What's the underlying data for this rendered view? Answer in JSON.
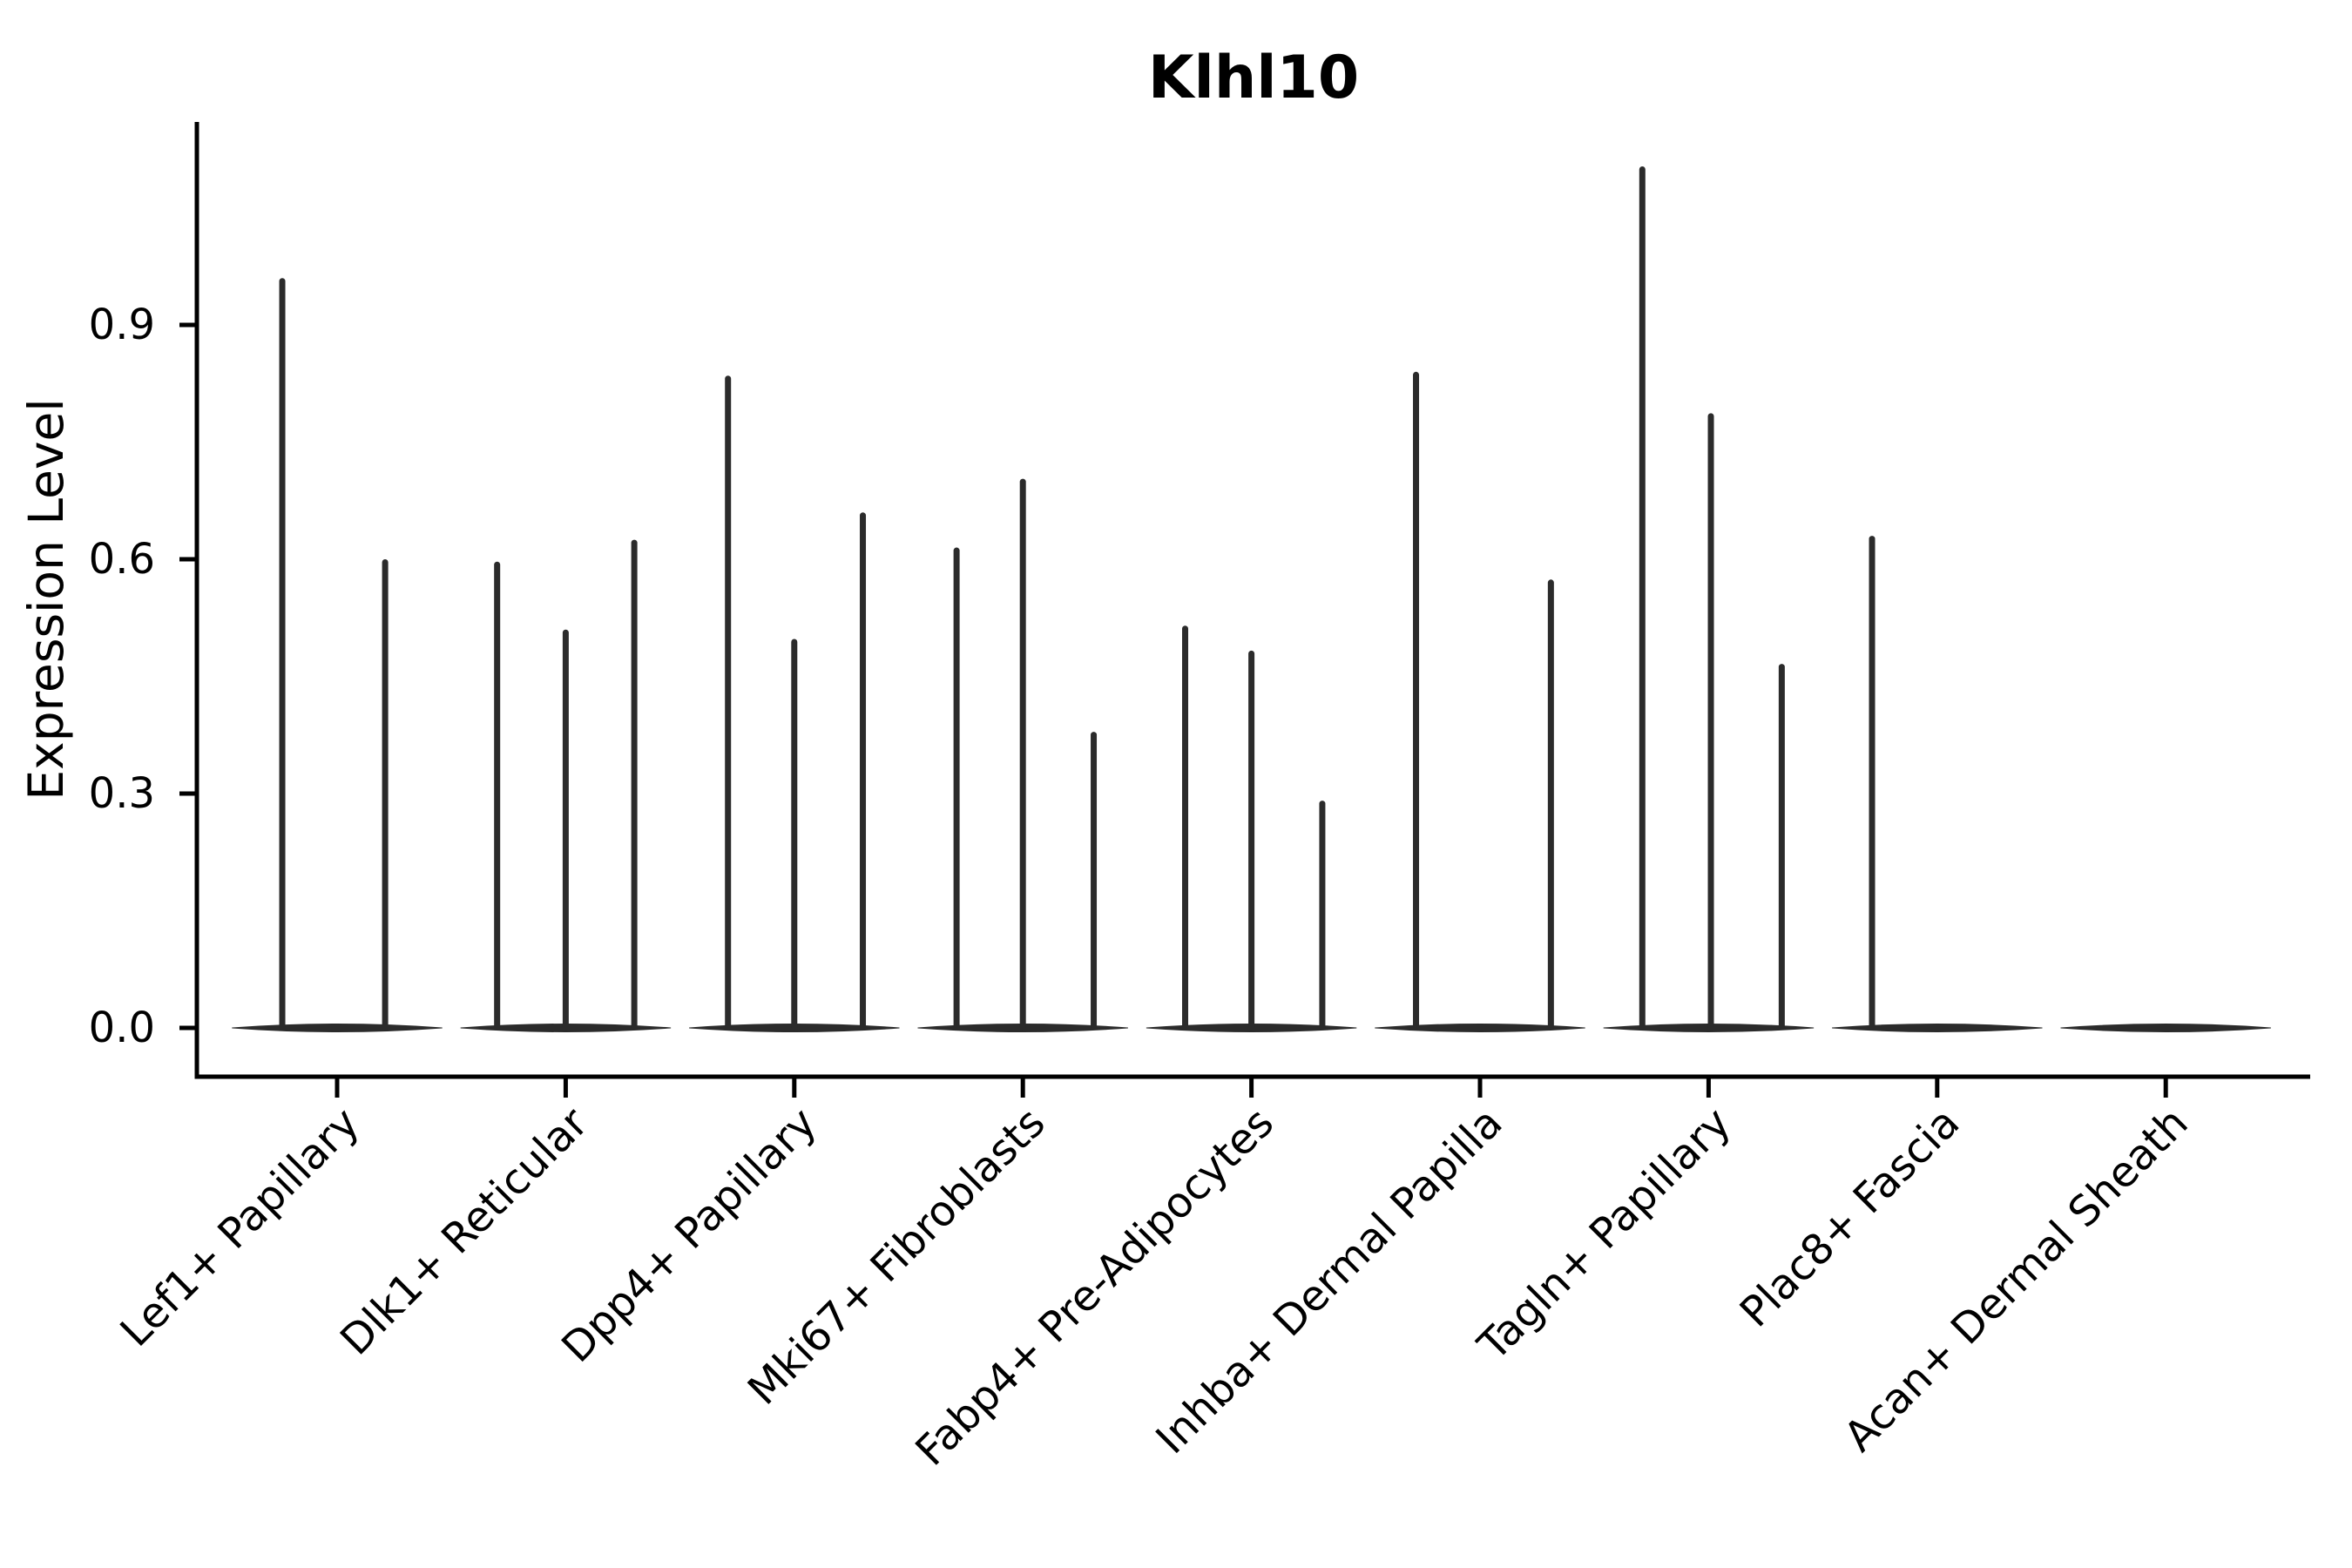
{
  "title": "Klhl10",
  "chart_data": {
    "type": "violin",
    "title": "Klhl10",
    "xlabel": "",
    "ylabel": "Expression Level",
    "ylim": [
      -0.06,
      1.16
    ],
    "grid": false,
    "legend": false,
    "y_ticks": [
      {
        "value": 0.0,
        "label": "0.0"
      },
      {
        "value": 0.3,
        "label": "0.3"
      },
      {
        "value": 0.6,
        "label": "0.6"
      },
      {
        "value": 0.9,
        "label": "0.9"
      }
    ],
    "categories": [
      {
        "label": "Lef1+ Papillary",
        "spikes": [
          {
            "pos": -0.24,
            "value": 0.96
          },
          {
            "pos": 0.21,
            "value": 0.6
          }
        ]
      },
      {
        "label": "Dlk1+ Reticular",
        "spikes": [
          {
            "pos": -0.3,
            "value": 0.597
          },
          {
            "pos": 0.0,
            "value": 0.51
          },
          {
            "pos": 0.3,
            "value": 0.625
          }
        ]
      },
      {
        "label": "Dpp4+ Papillary",
        "spikes": [
          {
            "pos": -0.29,
            "value": 0.835
          },
          {
            "pos": 0.0,
            "value": 0.498
          },
          {
            "pos": 0.3,
            "value": 0.66
          }
        ]
      },
      {
        "label": "Mki67+ Fibroblasts",
        "spikes": [
          {
            "pos": -0.29,
            "value": 0.615
          },
          {
            "pos": 0.0,
            "value": 0.703
          },
          {
            "pos": 0.31,
            "value": 0.379
          }
        ]
      },
      {
        "label": "Fabp4+ Pre-Adipocytes",
        "spikes": [
          {
            "pos": -0.29,
            "value": 0.515
          },
          {
            "pos": 0.0,
            "value": 0.483
          },
          {
            "pos": 0.31,
            "value": 0.291
          }
        ]
      },
      {
        "label": "Inhba+ Dermal Papilla",
        "spikes": [
          {
            "pos": -0.28,
            "value": 0.84
          },
          {
            "pos": 0.31,
            "value": 0.574
          }
        ]
      },
      {
        "label": "Tagln+ Papillary",
        "spikes": [
          {
            "pos": -0.29,
            "value": 1.103
          },
          {
            "pos": 0.01,
            "value": 0.787
          },
          {
            "pos": 0.32,
            "value": 0.466
          }
        ]
      },
      {
        "label": "Plac8+ Fascia",
        "spikes": [
          {
            "pos": -0.285,
            "value": 0.63
          }
        ]
      },
      {
        "label": "Acan+ Dermal Sheath",
        "spikes": []
      }
    ],
    "violin_halfwidth": 0.46,
    "colors": {
      "violin": "#2b2b2b",
      "axis": "#000000",
      "text": "#000000",
      "background": "#ffffff"
    }
  }
}
